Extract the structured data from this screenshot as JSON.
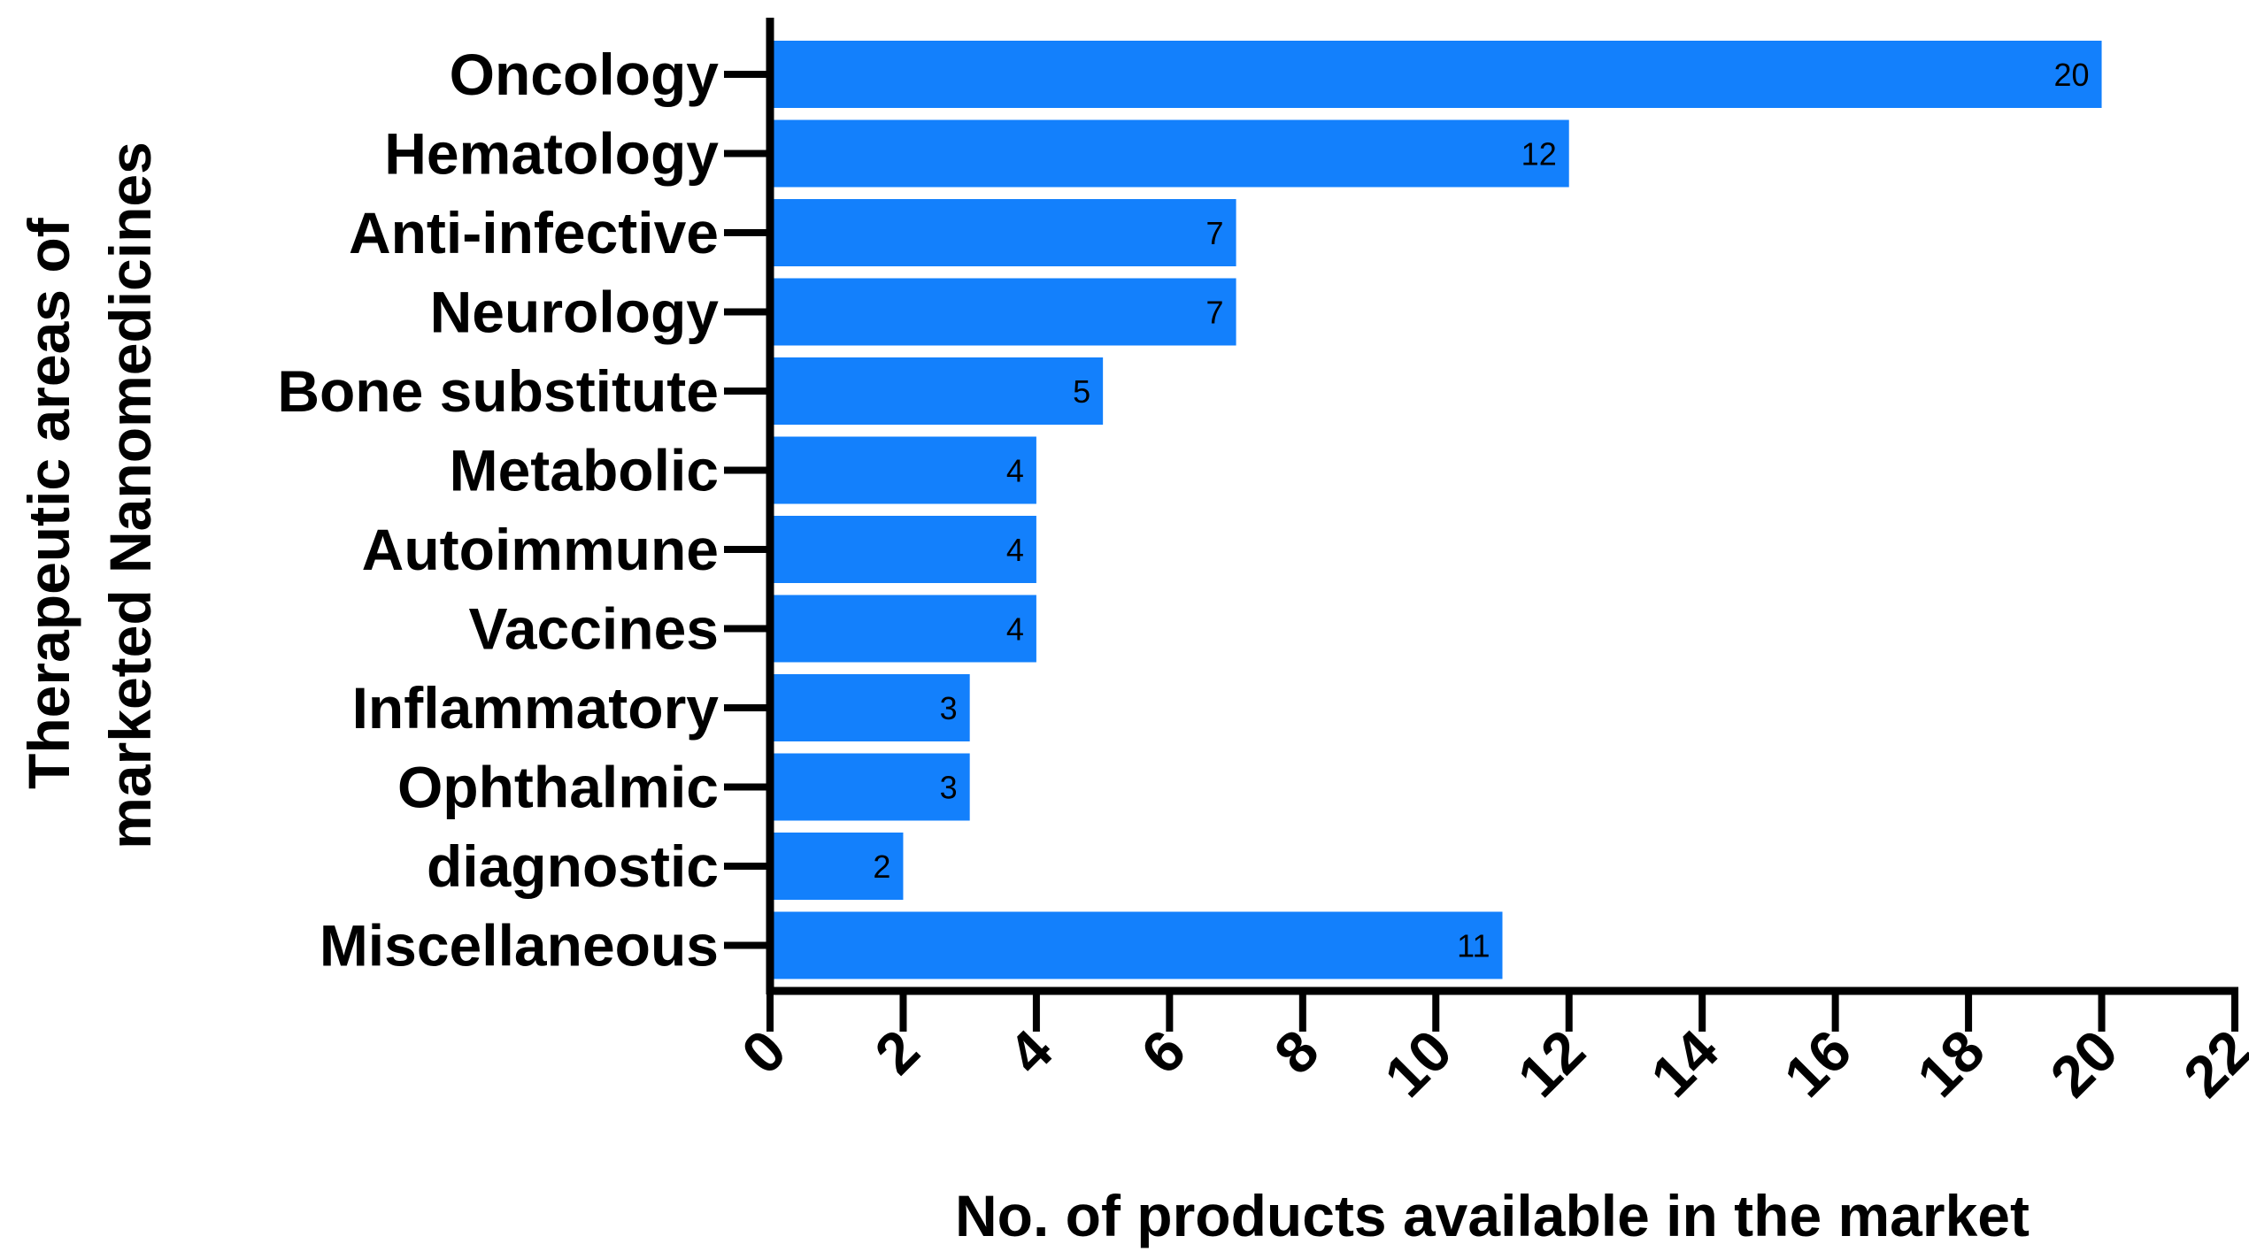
{
  "chart_data": {
    "type": "bar",
    "orientation": "horizontal",
    "categories": [
      "Oncology",
      "Hematology",
      "Anti-infective",
      "Neurology",
      "Bone substitute",
      "Metabolic",
      "Autoimmune",
      "Vaccines",
      "Inflammatory",
      "Ophthalmic",
      "diagnostic",
      "Miscellaneous"
    ],
    "values": [
      20,
      12,
      7,
      7,
      5,
      4,
      4,
      4,
      3,
      3,
      2,
      11
    ],
    "xlabel": "No. of products available in the market",
    "ylabel_lines": [
      "Therapeutic areas of",
      "marketed Nanomedicines"
    ],
    "xlim": [
      0,
      22
    ],
    "xticks": [
      "0",
      "2",
      "4",
      "6",
      "8",
      "10",
      "12",
      "14",
      "16",
      "18",
      "20",
      "22"
    ],
    "bar_color": "#1380FC",
    "data_labels": true,
    "grid": false,
    "legend": "none"
  }
}
